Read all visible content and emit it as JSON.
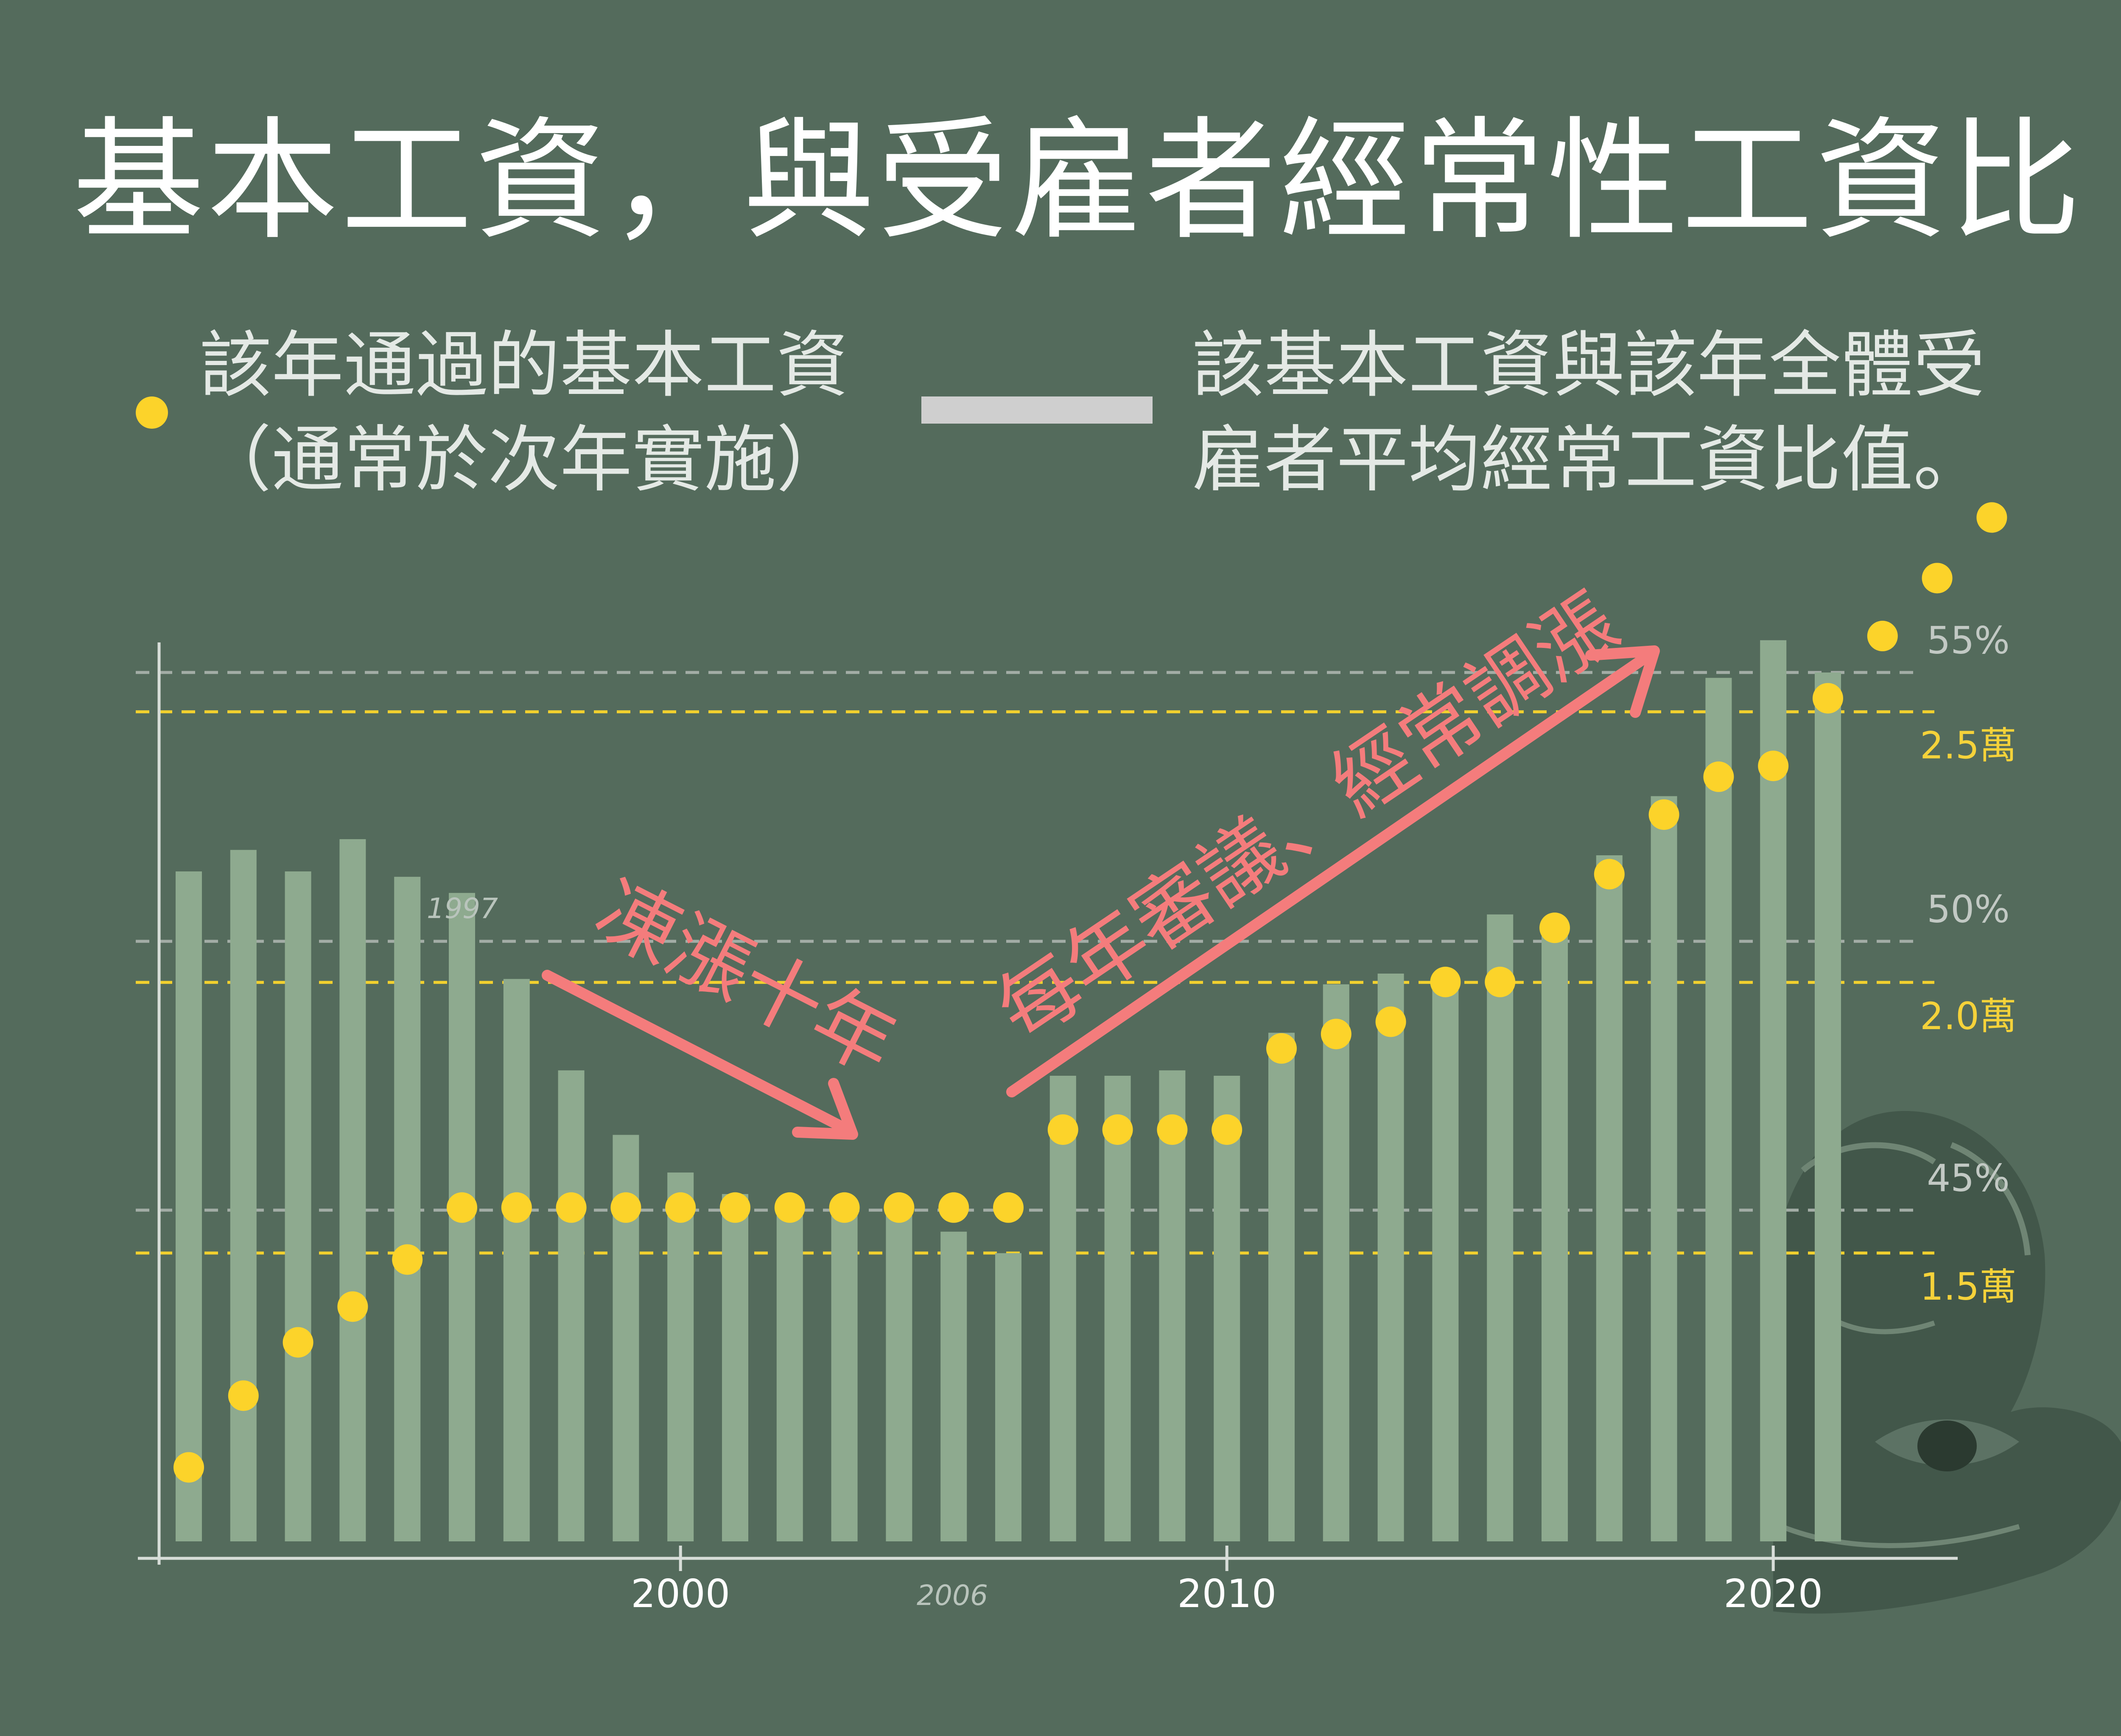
{
  "title": "基本工資，與受雇者經常性工資比",
  "legend": {
    "dot_line1": "該年通過的基本工資",
    "dot_line2": "（通常於次年實施）",
    "bar_line1": "該基本工資與該年全體受",
    "bar_line2": "雇者平均經常工資比值。"
  },
  "colors": {
    "background": "#546b5c",
    "bar": "#8eaa8f",
    "dot": "#fcd32a",
    "annotation": "#f47c7c",
    "ratio_grid": "#a3ada6",
    "wage_grid": "#f2d02e",
    "axis": "#d7ddd8"
  },
  "chart_data": {
    "type": "bar",
    "x_ticks": [
      "2000",
      "2010",
      "2020"
    ],
    "x_ticks_minor": [
      "1997",
      "2006"
    ],
    "series": [
      {
        "name": "該基本工資與該年全體受雇者平均經常工資比值。",
        "kind": "bar",
        "axis": "ratio_percent",
        "x": [
          1991,
          1992,
          1993,
          1994,
          1995,
          1996,
          1997,
          1998,
          1999,
          2000,
          2001,
          2002,
          2003,
          2004,
          2005,
          2006,
          2007,
          2008,
          2009,
          2010,
          2011,
          2012,
          2013,
          2014,
          2015,
          2016,
          2017,
          2018,
          2019,
          2020,
          2021,
          2022
        ],
        "values": [
          51.3,
          51.7,
          51.3,
          51.9,
          51.2,
          50.9,
          49.3,
          47.6,
          46.4,
          45.7,
          45.3,
          45.2,
          45.0,
          44.9,
          44.6,
          44.2,
          47.5,
          47.5,
          47.6,
          47.5,
          48.3,
          49.2,
          49.4,
          49.2,
          50.5,
          50.3,
          51.6,
          52.7,
          54.9,
          55.6,
          55.0,
          null
        ]
      },
      {
        "name": "該年通過的基本工資",
        "kind": "dot",
        "axis": "wage",
        "x": [
          1991,
          1992,
          1993,
          1994,
          1995,
          1996,
          1997,
          1998,
          1999,
          2000,
          2001,
          2002,
          2003,
          2004,
          2005,
          2006,
          2007,
          2008,
          2009,
          2010,
          2011,
          2012,
          2013,
          2014,
          2015,
          2016,
          2017,
          2018,
          2019,
          2020,
          2021,
          2022,
          2023,
          2024
        ],
        "values": [
          11040,
          12365,
          13350,
          14010,
          14880,
          15840,
          15840,
          15840,
          15840,
          15840,
          15840,
          15840,
          15840,
          15840,
          15840,
          15840,
          17280,
          17280,
          17280,
          17280,
          18780,
          19047,
          19273,
          20008,
          20008,
          21009,
          22000,
          23100,
          23800,
          24000,
          25250,
          26400,
          27470,
          28590
        ]
      }
    ],
    "ratio_grid": [
      {
        "value": 45,
        "label": "45%"
      },
      {
        "value": 50,
        "label": "50%"
      },
      {
        "value": 55,
        "label": "55%"
      }
    ],
    "wage_grid": [
      {
        "value": 15000,
        "label": "1.5萬"
      },
      {
        "value": 20000,
        "label": "2.0萬"
      },
      {
        "value": 25000,
        "label": "2.5萬"
      }
    ],
    "annotations": [
      {
        "text": "凍漲十年"
      },
      {
        "text": "每年審議、經常調漲"
      }
    ]
  }
}
